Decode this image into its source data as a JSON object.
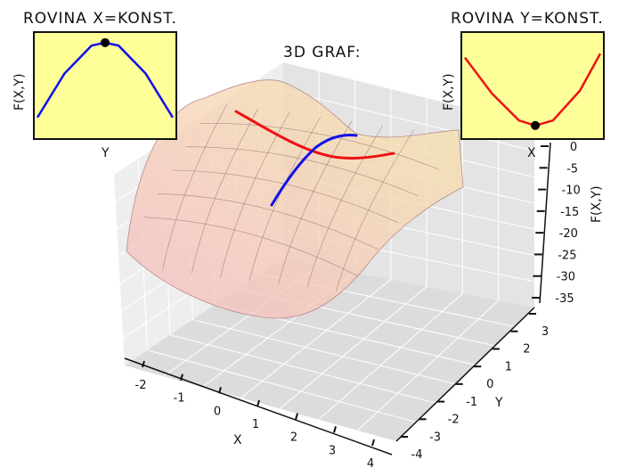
{
  "chart_data": {
    "type": "surface",
    "function_note": "",
    "main": {
      "title": "3D GRAF:",
      "xlabel": "X",
      "ylabel": "Y",
      "zlabel": "F(X,Y)",
      "x_ticks": [
        "-2",
        "-1",
        "0",
        "1",
        "2",
        "3",
        "4"
      ],
      "y_ticks": [
        "-4",
        "-3",
        "-2",
        "-1",
        "0",
        "1",
        "2",
        "3"
      ],
      "z_ticks": [
        "0",
        "-5",
        "-10",
        "-15",
        "-20",
        "-25",
        "-30",
        "-35"
      ],
      "xlim": [
        -2.5,
        4
      ],
      "ylim": [
        -4,
        3.5
      ],
      "zlim": [
        -35,
        0
      ],
      "surface_colors": [
        "#f4b9c0",
        "#f8e6a8"
      ],
      "slice_colors": {
        "y_const": "#ee1111",
        "x_const": "#1111ee"
      }
    },
    "inset_left": {
      "title": "ROVINA X=KONST.",
      "xlabel": "Y",
      "ylabel": "F(X,Y)",
      "line_color": "#1111ee",
      "shape": "concave",
      "curve": [
        [
          0,
          0.18
        ],
        [
          0.2,
          0.62
        ],
        [
          0.4,
          0.9
        ],
        [
          0.5,
          0.93
        ],
        [
          0.6,
          0.9
        ],
        [
          0.8,
          0.62
        ],
        [
          1,
          0.18
        ]
      ],
      "marker": [
        0.5,
        0.93
      ],
      "background": "#ffff99"
    },
    "inset_right": {
      "title": "ROVINA Y=KONST.",
      "xlabel": "X",
      "ylabel": "F(X,Y)",
      "line_color": "#ee1111",
      "shape": "convex",
      "curve": [
        [
          0,
          0.78
        ],
        [
          0.2,
          0.42
        ],
        [
          0.4,
          0.15
        ],
        [
          0.52,
          0.1
        ],
        [
          0.65,
          0.15
        ],
        [
          0.85,
          0.45
        ],
        [
          1,
          0.82
        ]
      ],
      "marker": [
        0.52,
        0.1
      ],
      "background": "#ffff99"
    }
  }
}
